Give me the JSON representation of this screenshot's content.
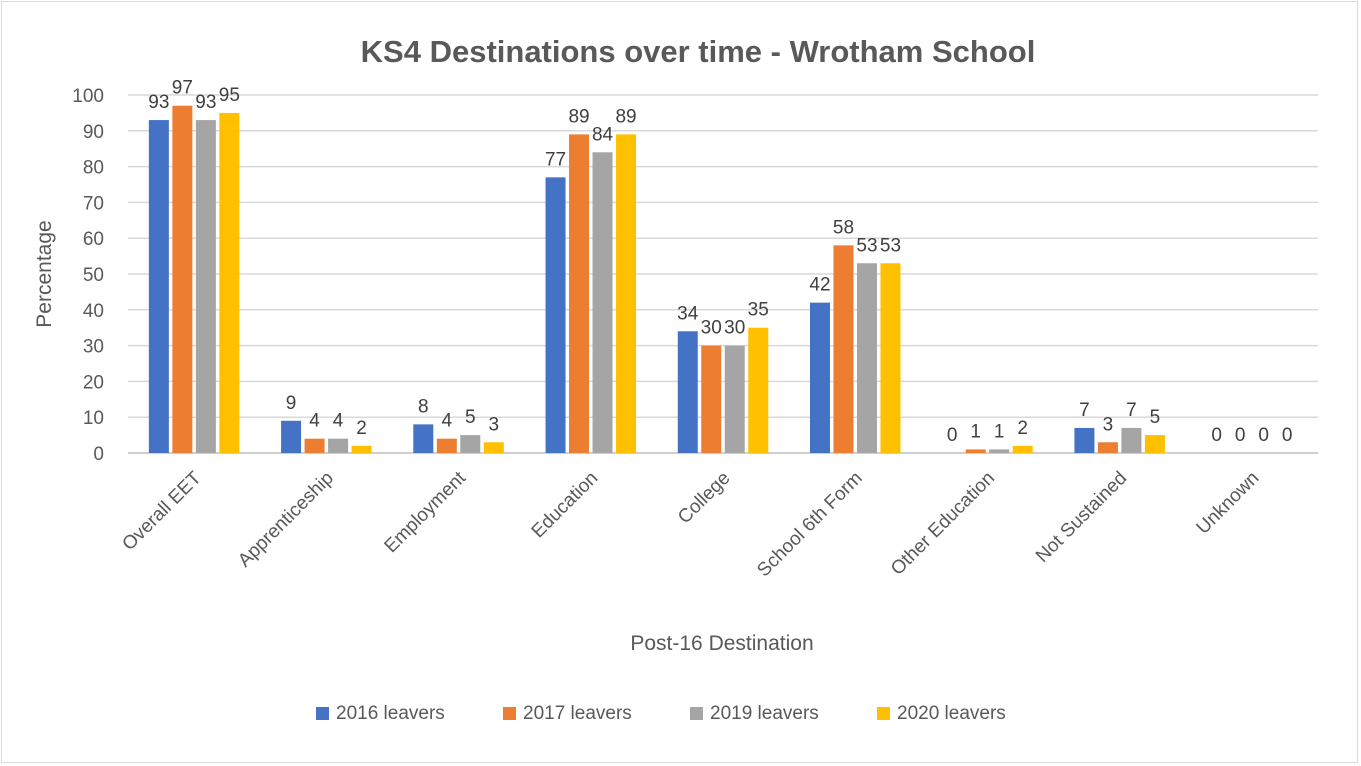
{
  "chart_data": {
    "type": "bar",
    "title": "KS4 Destinations over time - Wrotham School",
    "xlabel": "Post-16 Destination",
    "ylabel": "Percentage",
    "ylim": [
      0,
      100
    ],
    "yticks": [
      0,
      10,
      20,
      30,
      40,
      50,
      60,
      70,
      80,
      90,
      100
    ],
    "grid": true,
    "legend_position": "bottom",
    "categories": [
      "Overall EET",
      "Apprenticeship",
      "Employment",
      "Education",
      "College",
      "School 6th Form",
      "Other Education",
      "Not Sustained",
      "Unknown"
    ],
    "series": [
      {
        "name": "2016 leavers",
        "color": "#4472C4",
        "values": [
          93,
          9,
          8,
          77,
          34,
          42,
          0,
          7,
          0
        ]
      },
      {
        "name": "2017 leavers",
        "color": "#ED7D31",
        "values": [
          97,
          4,
          4,
          89,
          30,
          58,
          1,
          3,
          0
        ]
      },
      {
        "name": "2019 leavers",
        "color": "#A5A5A5",
        "values": [
          93,
          4,
          5,
          84,
          30,
          53,
          1,
          7,
          0
        ]
      },
      {
        "name": "2020 leavers",
        "color": "#FFC000",
        "values": [
          95,
          2,
          3,
          89,
          35,
          53,
          2,
          5,
          0
        ]
      }
    ]
  }
}
